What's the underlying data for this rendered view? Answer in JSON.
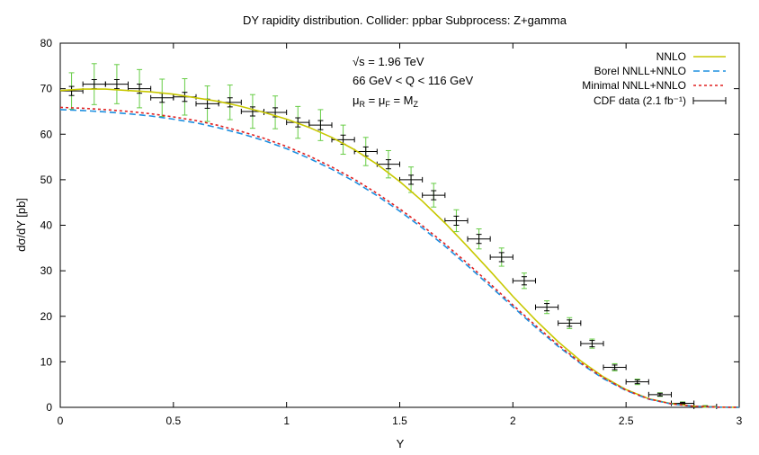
{
  "chart_data": {
    "type": "line",
    "title": "DY rapidity distribution.   Collider: ppbar   Subprocess: Z+gamma",
    "xlabel": "Y",
    "ylabel": "dσ/dY [pb]",
    "xlim": [
      0,
      3
    ],
    "ylim": [
      0,
      80
    ],
    "xticks": [
      0,
      0.5,
      1,
      1.5,
      2,
      2.5,
      3
    ],
    "xtick_labels": [
      "0",
      "0.5",
      "1",
      "1.5",
      "2",
      "2.5",
      "3"
    ],
    "yticks": [
      0,
      10,
      20,
      30,
      40,
      50,
      60,
      70,
      80
    ],
    "ytick_labels": [
      "0",
      "10",
      "20",
      "30",
      "40",
      "50",
      "60",
      "70",
      "80"
    ],
    "grid": false,
    "legend_position": "top-right",
    "annotations": {
      "sqrt_s": {
        "prefix": "√s = 1.96 TeV"
      },
      "q_range": "66 GeV < Q < 116 GeV",
      "scales": {
        "mu": "μ",
        "r": "R",
        "eq1": " = ",
        "f": "F",
        "eq2": " = M",
        "z": "Z"
      }
    },
    "series": [
      {
        "name": "NNLO",
        "color": "#c8c800",
        "style": "solid",
        "x": [
          0,
          0.1,
          0.2,
          0.3,
          0.4,
          0.5,
          0.6,
          0.7,
          0.8,
          0.9,
          1.0,
          1.1,
          1.2,
          1.3,
          1.4,
          1.5,
          1.6,
          1.7,
          1.8,
          1.9,
          2.0,
          2.1,
          2.2,
          2.3,
          2.4,
          2.5,
          2.6,
          2.7,
          2.8,
          2.9,
          3.0
        ],
        "y": [
          69.6,
          69.9,
          69.9,
          69.6,
          69.3,
          68.8,
          68.0,
          67.2,
          66.1,
          64.8,
          63.3,
          61.5,
          59.3,
          56.6,
          53.4,
          49.6,
          45.3,
          40.5,
          35.3,
          29.9,
          24.4,
          19.2,
          14.4,
          10.2,
          6.7,
          3.9,
          1.9,
          0.8,
          0.25,
          0.05,
          0.0
        ]
      },
      {
        "name": "Borel NNLL+NNLO",
        "color": "#1e90e0",
        "style": "dashed",
        "x": [
          0,
          0.1,
          0.2,
          0.3,
          0.4,
          0.5,
          0.6,
          0.7,
          0.8,
          0.9,
          1.0,
          1.1,
          1.2,
          1.3,
          1.4,
          1.5,
          1.6,
          1.7,
          1.8,
          1.9,
          2.0,
          2.1,
          2.2,
          2.3,
          2.4,
          2.5,
          2.6,
          2.7,
          2.8,
          2.9,
          3.0
        ],
        "y": [
          65.4,
          65.2,
          64.9,
          64.5,
          64.0,
          63.3,
          62.5,
          61.4,
          60.1,
          58.6,
          56.8,
          54.7,
          52.3,
          49.6,
          46.5,
          43.1,
          39.4,
          35.4,
          31.1,
          26.6,
          22.1,
          17.6,
          13.4,
          9.6,
          6.3,
          3.7,
          1.8,
          0.75,
          0.22,
          0.04,
          0.0
        ]
      },
      {
        "name": "Minimal NNLL+NNLO",
        "color": "#e02020",
        "style": "dotted",
        "x": [
          0,
          0.1,
          0.2,
          0.3,
          0.4,
          0.5,
          0.6,
          0.7,
          0.8,
          0.9,
          1.0,
          1.1,
          1.2,
          1.3,
          1.4,
          1.5,
          1.6,
          1.7,
          1.8,
          1.9,
          2.0,
          2.1,
          2.2,
          2.3,
          2.4,
          2.5,
          2.6,
          2.7,
          2.8,
          2.9,
          3.0
        ],
        "y": [
          65.9,
          65.7,
          65.4,
          65.0,
          64.5,
          63.8,
          63.0,
          61.9,
          60.6,
          59.1,
          57.3,
          55.2,
          52.8,
          50.1,
          47.0,
          43.6,
          39.9,
          35.9,
          31.6,
          27.1,
          22.5,
          18.0,
          13.7,
          9.8,
          6.5,
          3.8,
          1.85,
          0.78,
          0.23,
          0.04,
          0.0
        ]
      },
      {
        "name": "CDF data (2.1 fb⁻¹)",
        "color": "#000000",
        "style": "errorbars",
        "x_halfwidth": 0.05,
        "x": [
          0.05,
          0.15,
          0.25,
          0.35,
          0.45,
          0.55,
          0.65,
          0.75,
          0.85,
          0.95,
          1.05,
          1.15,
          1.25,
          1.35,
          1.45,
          1.55,
          1.65,
          1.75,
          1.85,
          1.95,
          2.05,
          2.15,
          2.25,
          2.35,
          2.45,
          2.55,
          2.65,
          2.75,
          2.85
        ],
        "y": [
          69.5,
          71.0,
          71.0,
          70.0,
          68.0,
          68.2,
          66.7,
          67.0,
          65.0,
          64.8,
          62.6,
          62.0,
          58.8,
          56.2,
          53.4,
          50.0,
          46.6,
          41.0,
          37.0,
          33.0,
          27.8,
          22.0,
          18.5,
          14.0,
          8.8,
          5.6,
          2.8,
          0.9,
          0.2
        ],
        "stat_err": [
          1.0,
          1.0,
          1.0,
          1.0,
          1.0,
          1.0,
          1.0,
          1.0,
          1.0,
          1.0,
          1.0,
          1.0,
          1.0,
          1.0,
          1.0,
          1.0,
          1.0,
          1.0,
          1.0,
          1.0,
          0.9,
          0.8,
          0.7,
          0.7,
          0.5,
          0.4,
          0.3,
          0.2,
          0.1
        ],
        "total_err": [
          4.0,
          4.5,
          4.3,
          4.2,
          4.1,
          4.0,
          3.9,
          3.8,
          3.7,
          3.6,
          3.5,
          3.4,
          3.2,
          3.1,
          3.0,
          2.8,
          2.6,
          2.4,
          2.2,
          2.0,
          1.7,
          1.4,
          1.2,
          1.0,
          0.8,
          0.6,
          0.4,
          0.3,
          0.2
        ],
        "total_err_color": "#66cc44"
      }
    ]
  }
}
